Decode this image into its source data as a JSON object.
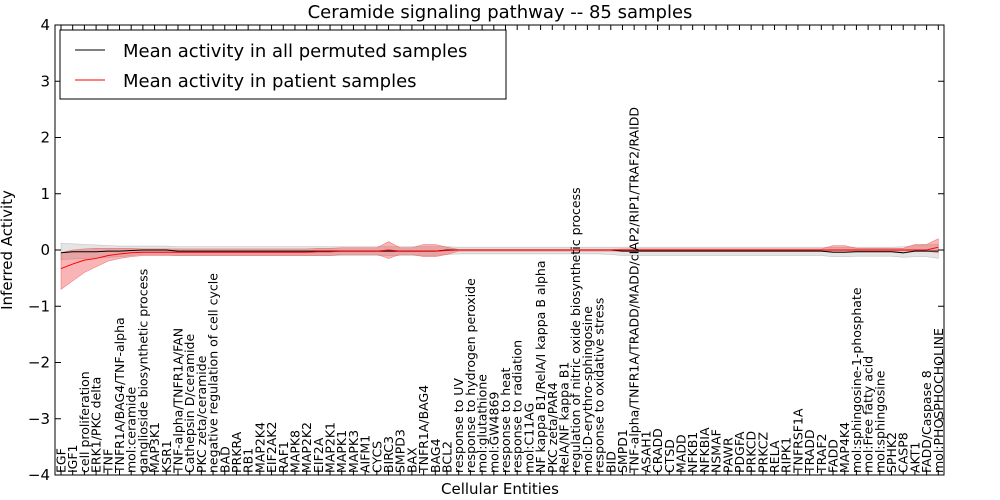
{
  "chart_data": {
    "type": "line",
    "title": "Ceramide signaling pathway -- 85 samples",
    "xlabel": "Cellular Entities",
    "ylabel": "Inferred Activity",
    "ylim": [
      -4,
      4
    ],
    "y_ticks": [
      -4,
      -3,
      -2,
      -1,
      0,
      1,
      2,
      3,
      4
    ],
    "y_tick_labels": [
      "−4",
      "−3",
      "−2",
      "−1",
      "0",
      "1",
      "2",
      "3",
      "4"
    ],
    "legend_position": "top-left",
    "grid": false,
    "categories": [
      "EGF",
      "IGF1",
      "cell proliferation",
      "ERK1/PKC delta",
      "TNF",
      "TNFR1A/BAG4/TNF-alpha",
      "mol:ceramide",
      "ganglioside biosynthetic process",
      "MAP3K1",
      "KSR1",
      "TNF-alpha/TNFR1A/FAN",
      "Cathepsin D/ceramide",
      "PKC zeta/ceramide",
      "negative regulation of cell cycle",
      "BAD",
      "PRKRA",
      "RB1",
      "MAP2K4",
      "EIF2AK2",
      "RAF1",
      "MAPK8",
      "MAP2K2",
      "EIF2A",
      "MAP2K1",
      "MAPK1",
      "MAPK3",
      "AIFM1",
      "CYCS",
      "BIRC3",
      "SMPD3",
      "BAX",
      "TNFR1A/BAG4",
      "BAG4",
      "BCL2",
      "response to UV",
      "response to hydrogen peroxide",
      "mol:glutathione",
      "mol:GW4869",
      "response to heat",
      "response to radiation",
      "mol:C11AG",
      "NF kappa B1/RelA/I kappa B alpha",
      "PKC zeta/PAR4",
      "RelA/NF kappa B1",
      "regulation of nitric oxide biosynthetic process",
      "mol:D-erythro-sphingosine",
      "response to oxidative stress",
      "BID",
      "SMPD1",
      "TNF-alpha/TNFR1A/TRADD/MADD/cIAP2/RIP1/TRAF2/RAIDD",
      "ASAH1",
      "CRADD",
      "CTSD",
      "MADD",
      "NFKB1",
      "NFKBIA",
      "NSMAF",
      "PAWR",
      "PDGFA",
      "PRKCD",
      "PRKCZ",
      "RELA",
      "RIPK1",
      "TNFRSF1A",
      "TRADD",
      "TRAF2",
      "FADD",
      "MAP4K4",
      "mol:sphingosine-1-phosphate",
      "mol:Free fatty acid",
      "mol:sphingosine",
      "SPHK2",
      "CASP8",
      "AKT1",
      "FADD/Caspase 8",
      "mol:PHOSPHOCHOLINE"
    ],
    "series": [
      {
        "name": "Mean activity in all permuted samples",
        "color": "#000000",
        "values": [
          -0.05,
          -0.03,
          -0.03,
          -0.03,
          -0.02,
          -0.02,
          -0.01,
          0,
          0,
          0,
          -0.02,
          -0.02,
          -0.02,
          -0.02,
          -0.02,
          -0.02,
          -0.02,
          -0.02,
          -0.02,
          -0.02,
          -0.02,
          -0.02,
          -0.02,
          -0.02,
          -0.02,
          -0.02,
          -0.02,
          -0.02,
          -0.02,
          -0.02,
          -0.02,
          -0.02,
          -0.02,
          0,
          0,
          0,
          0,
          0,
          0,
          0,
          0,
          0,
          0,
          0,
          0,
          0,
          0,
          0,
          -0.02,
          -0.02,
          -0.02,
          -0.02,
          -0.02,
          -0.02,
          -0.02,
          -0.02,
          -0.02,
          -0.02,
          -0.02,
          -0.02,
          -0.02,
          -0.02,
          -0.02,
          -0.02,
          -0.02,
          -0.02,
          -0.04,
          -0.04,
          -0.03,
          -0.03,
          -0.03,
          -0.03,
          -0.05,
          -0.02,
          -0.02,
          -0.02
        ],
        "band_lower": [
          -0.17,
          -0.16,
          -0.15,
          -0.14,
          -0.13,
          -0.12,
          -0.1,
          -0.08,
          -0.08,
          -0.08,
          -0.1,
          -0.1,
          -0.1,
          -0.1,
          -0.1,
          -0.1,
          -0.1,
          -0.1,
          -0.1,
          -0.1,
          -0.1,
          -0.1,
          -0.1,
          -0.1,
          -0.1,
          -0.1,
          -0.1,
          -0.1,
          -0.1,
          -0.1,
          -0.1,
          -0.1,
          -0.1,
          -0.08,
          -0.07,
          -0.07,
          -0.07,
          -0.07,
          -0.07,
          -0.07,
          -0.07,
          -0.07,
          -0.07,
          -0.07,
          -0.07,
          -0.07,
          -0.07,
          -0.08,
          -0.1,
          -0.1,
          -0.1,
          -0.1,
          -0.1,
          -0.1,
          -0.1,
          -0.1,
          -0.1,
          -0.1,
          -0.1,
          -0.1,
          -0.1,
          -0.1,
          -0.1,
          -0.1,
          -0.1,
          -0.1,
          -0.12,
          -0.12,
          -0.11,
          -0.11,
          -0.11,
          -0.11,
          -0.13,
          -0.12,
          -0.12,
          -0.15
        ],
        "band_upper": [
          0.12,
          0.11,
          0.1,
          0.09,
          0.08,
          0.07,
          0.07,
          0.07,
          0.07,
          0.07,
          0.06,
          0.06,
          0.06,
          0.06,
          0.06,
          0.06,
          0.06,
          0.06,
          0.06,
          0.06,
          0.06,
          0.06,
          0.06,
          0.06,
          0.06,
          0.06,
          0.06,
          0.06,
          0.06,
          0.06,
          0.06,
          0.06,
          0.06,
          0.06,
          0.05,
          0.05,
          0.05,
          0.05,
          0.05,
          0.05,
          0.05,
          0.05,
          0.05,
          0.05,
          0.05,
          0.05,
          0.05,
          0.05,
          0.05,
          0.05,
          0.05,
          0.05,
          0.05,
          0.05,
          0.05,
          0.05,
          0.05,
          0.05,
          0.05,
          0.05,
          0.05,
          0.05,
          0.05,
          0.05,
          0.05,
          0.05,
          0.05,
          0.05,
          0.05,
          0.05,
          0.05,
          0.05,
          0.06,
          0.08,
          0.09,
          0.1
        ]
      },
      {
        "name": "Mean activity in patient samples",
        "color": "#ff0000",
        "values": [
          -0.33,
          -0.25,
          -0.18,
          -0.15,
          -0.1,
          -0.07,
          -0.05,
          -0.04,
          -0.04,
          -0.04,
          -0.04,
          -0.04,
          -0.04,
          -0.04,
          -0.04,
          -0.04,
          -0.04,
          -0.04,
          -0.04,
          -0.04,
          -0.04,
          -0.04,
          -0.03,
          -0.03,
          -0.02,
          -0.02,
          -0.02,
          -0.02,
          0,
          -0.02,
          -0.02,
          -0.02,
          -0.02,
          -0.01,
          0,
          0,
          0,
          0,
          0,
          0,
          0,
          0,
          0,
          0,
          0,
          0,
          0,
          0,
          0,
          0,
          0,
          0,
          0,
          0,
          0,
          0,
          0,
          0,
          0,
          0,
          0,
          0,
          0,
          0,
          0,
          0,
          0,
          0,
          0,
          0,
          0,
          0,
          0,
          0,
          0,
          0.05
        ],
        "band_lower": [
          -0.7,
          -0.55,
          -0.4,
          -0.3,
          -0.2,
          -0.15,
          -0.12,
          -0.1,
          -0.1,
          -0.1,
          -0.1,
          -0.1,
          -0.1,
          -0.1,
          -0.1,
          -0.1,
          -0.1,
          -0.1,
          -0.1,
          -0.1,
          -0.1,
          -0.1,
          -0.1,
          -0.1,
          -0.08,
          -0.08,
          -0.08,
          -0.08,
          -0.15,
          -0.08,
          -0.08,
          -0.12,
          -0.12,
          -0.08,
          -0.02,
          -0.02,
          -0.02,
          -0.02,
          -0.02,
          -0.02,
          -0.02,
          -0.02,
          -0.02,
          -0.02,
          -0.02,
          -0.02,
          -0.02,
          -0.02,
          -0.02,
          -0.02,
          -0.02,
          -0.02,
          -0.02,
          -0.02,
          -0.02,
          -0.02,
          -0.02,
          -0.02,
          -0.02,
          -0.02,
          -0.02,
          -0.02,
          -0.02,
          -0.02,
          -0.02,
          -0.02,
          -0.02,
          -0.02,
          -0.02,
          -0.02,
          -0.02,
          -0.02,
          -0.02,
          -0.02,
          -0.02,
          -0.05
        ],
        "band_upper": [
          -0.05,
          0.0,
          0.02,
          0.03,
          0.03,
          0.03,
          0.03,
          0.02,
          0.02,
          0.02,
          0.02,
          0.02,
          0.02,
          0.02,
          0.02,
          0.02,
          0.02,
          0.02,
          0.02,
          0.02,
          0.02,
          0.02,
          0.03,
          0.03,
          0.04,
          0.04,
          0.04,
          0.04,
          0.15,
          0.04,
          0.04,
          0.1,
          0.1,
          0.05,
          0.01,
          0.01,
          0.01,
          0.01,
          0.01,
          0.01,
          0.01,
          0.01,
          0.01,
          0.01,
          0.01,
          0.01,
          0.01,
          0.01,
          0.02,
          0.02,
          0.02,
          0.02,
          0.02,
          0.02,
          0.02,
          0.02,
          0.02,
          0.02,
          0.02,
          0.02,
          0.02,
          0.02,
          0.02,
          0.02,
          0.02,
          0.02,
          0.08,
          0.08,
          0.03,
          0.03,
          0.03,
          0.03,
          0.03,
          0.1,
          0.1,
          0.2
        ]
      }
    ]
  }
}
